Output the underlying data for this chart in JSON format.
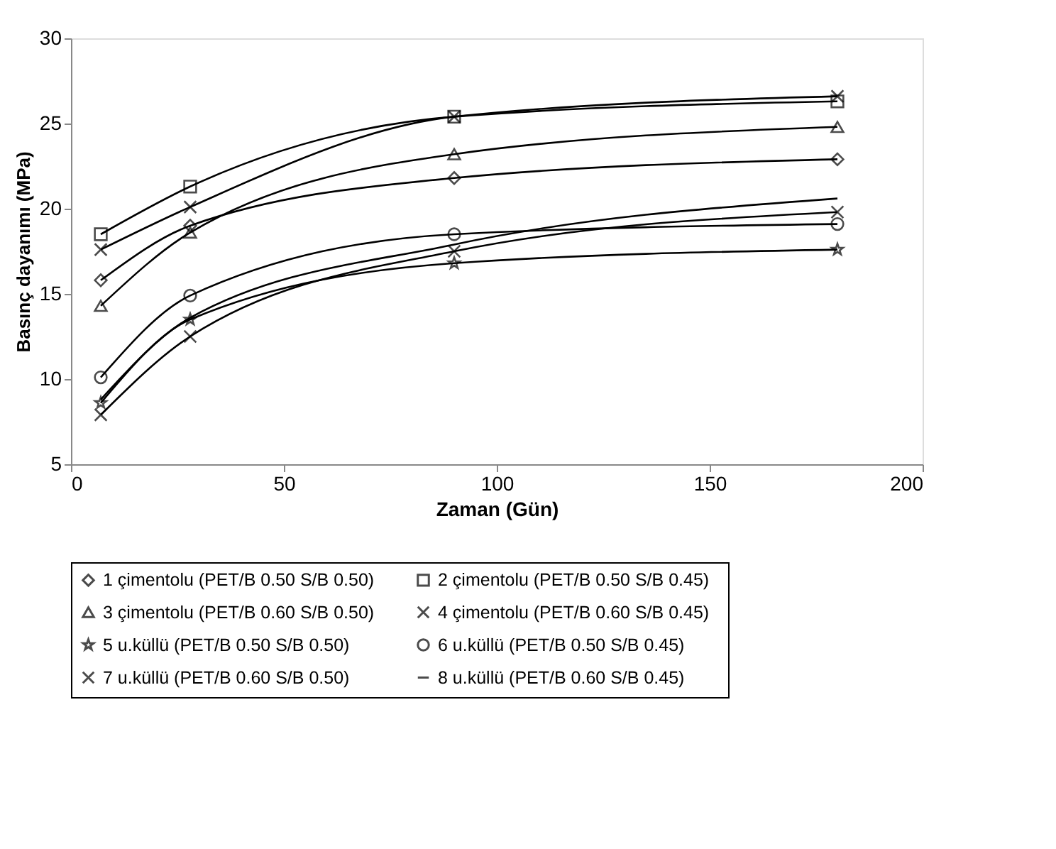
{
  "chart_data": {
    "type": "line",
    "xlabel": "Zaman (Gün)",
    "ylabel": "Basınç dayanımı (MPa)",
    "x": [
      7,
      28,
      90,
      180
    ],
    "xlim": [
      0,
      200
    ],
    "xticks": [
      0,
      50,
      100,
      150,
      200
    ],
    "ylim": [
      5,
      30
    ],
    "yticks": [
      5,
      10,
      15,
      20,
      25,
      30
    ],
    "grid": false,
    "legend": "bottom",
    "series": [
      {
        "name": "1 çimentolu (PET/B 0.50   S/B 0.50)",
        "color": "#000000",
        "marker": "diamond",
        "values": [
          15.8,
          19.0,
          21.8,
          22.9
        ]
      },
      {
        "name": "2 çimentolu (PET/B 0.50   S/B 0.45)",
        "color": "#000000",
        "marker": "square",
        "values": [
          18.5,
          21.3,
          25.4,
          26.3
        ]
      },
      {
        "name": "3 çimentolu (PET/B 0.60   S/B 0.50)",
        "color": "#000000",
        "marker": "triangle",
        "values": [
          14.3,
          18.6,
          23.2,
          24.8
        ]
      },
      {
        "name": "4 çimentolu (PET/B 0.60   S/B 0.45)",
        "color": "#000000",
        "marker": "cross",
        "values": [
          17.6,
          20.1,
          25.4,
          26.6
        ]
      },
      {
        "name": "5 u.küllü (PET/B 0.50   S/B 0.50)",
        "color": "#000000",
        "marker": "star",
        "values": [
          8.6,
          13.5,
          16.8,
          17.6
        ]
      },
      {
        "name": "6 u.küllü (PET/B 0.50   S/B 0.45)",
        "color": "#000000",
        "marker": "circle",
        "values": [
          10.1,
          14.9,
          18.5,
          19.1
        ]
      },
      {
        "name": "7 u.küllü (PET/B 0.60   S/B 0.50)",
        "color": "#000000",
        "marker": "cross",
        "values": [
          7.9,
          12.5,
          17.5,
          19.8
        ]
      },
      {
        "name": "8 u.küllü (PET/B 0.60   S/B 0.45)",
        "color": "#000000",
        "marker": "none",
        "values": [
          8.8,
          13.6,
          17.9,
          20.6
        ]
      }
    ]
  }
}
